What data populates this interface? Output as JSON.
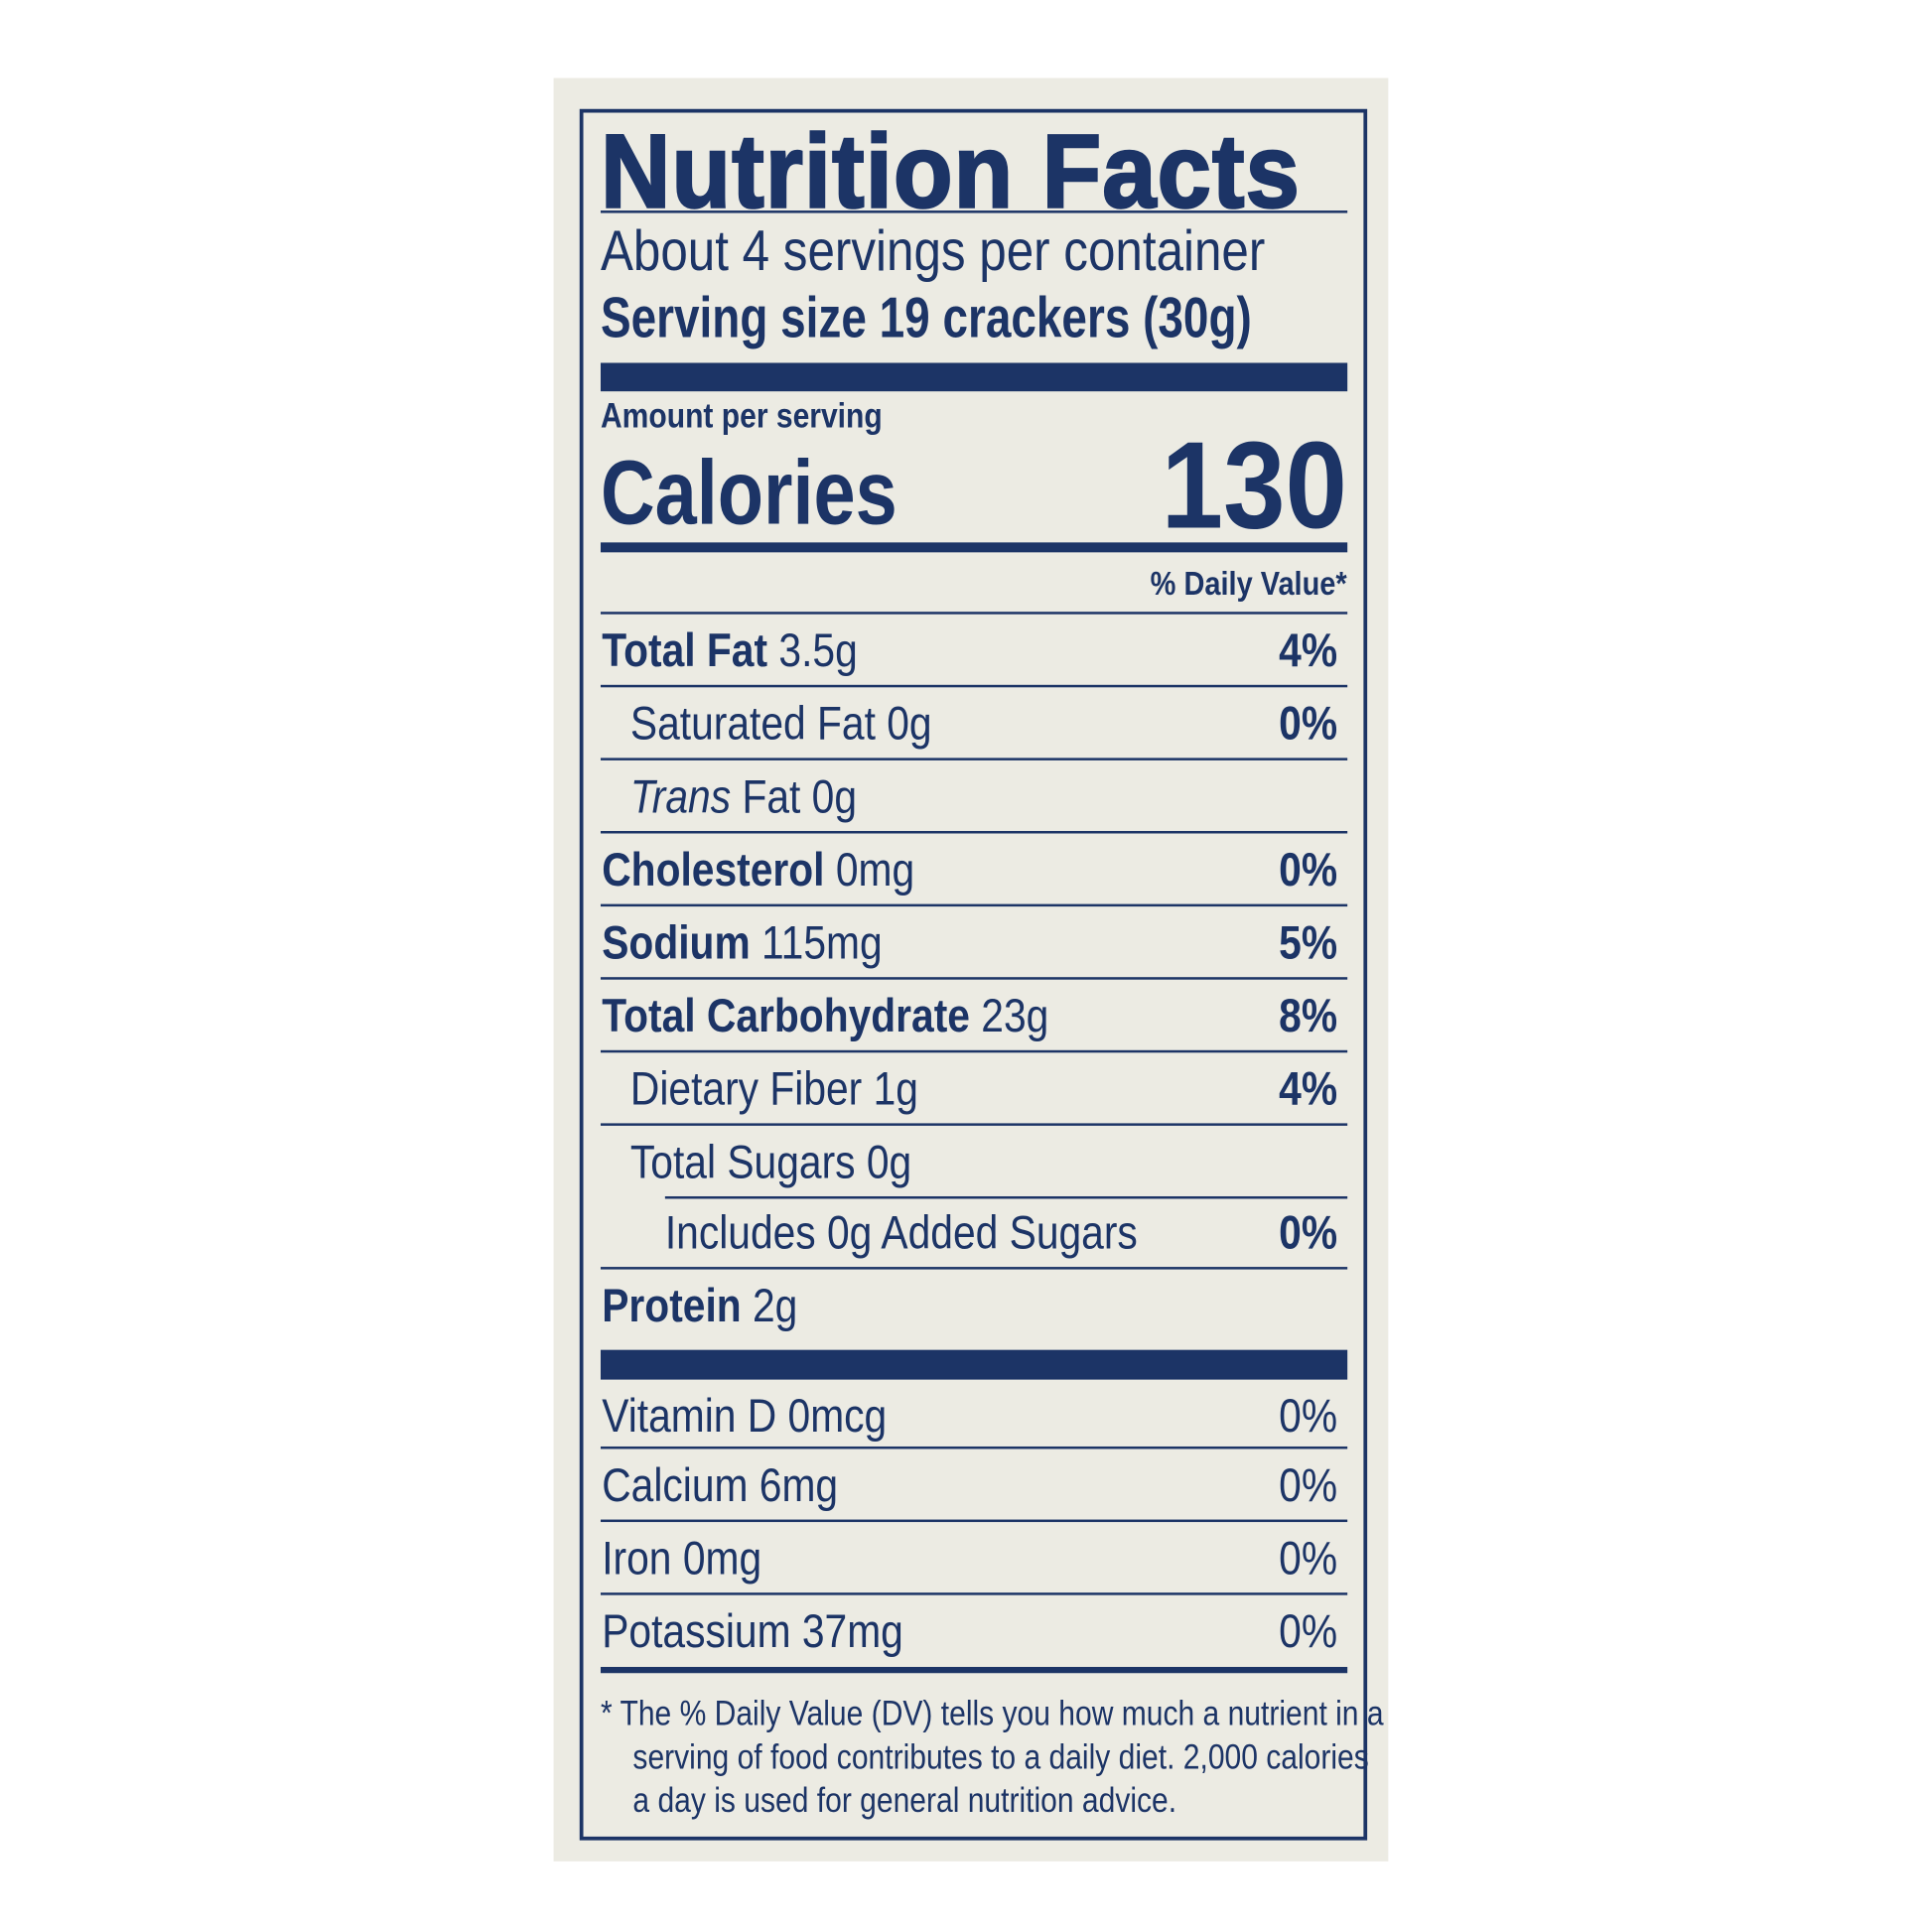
{
  "colors": {
    "ink": "#1c3466",
    "background": "#ecebe3"
  },
  "title": "Nutrition Facts",
  "servings_per_container": "About 4 servings per container",
  "serving_size": "Serving size 19 crackers (30g)",
  "amount_per_serving": "Amount per serving",
  "calories_label": "Calories",
  "calories_value": "130",
  "daily_value_header": "% Daily Value*",
  "nutrients": [
    {
      "label": "Total Fat",
      "amount": "3.5g",
      "dv": "4%",
      "bold": true,
      "indent": 0
    },
    {
      "label": "Saturated Fat",
      "amount": "0g",
      "dv": "0%",
      "bold": false,
      "indent": 1
    },
    {
      "italic": "Trans",
      "label": "Fat",
      "amount": "0g",
      "dv": "",
      "bold": false,
      "indent": 1
    },
    {
      "label": "Cholesterol",
      "amount": "0mg",
      "dv": "0%",
      "bold": true,
      "indent": 0
    },
    {
      "label": "Sodium",
      "amount": "115mg",
      "dv": "5%",
      "bold": true,
      "indent": 0
    },
    {
      "label": "Total Carbohydrate",
      "amount": "23g",
      "dv": "8%",
      "bold": true,
      "indent": 0
    },
    {
      "label": "Dietary Fiber",
      "amount": "1g",
      "dv": "4%",
      "bold": false,
      "indent": 1
    },
    {
      "label": "Total Sugars",
      "amount": "0g",
      "dv": "",
      "bold": false,
      "indent": 1,
      "short_line": true
    },
    {
      "label": "Includes 0g Added Sugars",
      "amount": "",
      "dv": "0%",
      "bold": false,
      "indent": 2
    },
    {
      "label": "Protein",
      "amount": "2g",
      "dv": "",
      "bold": true,
      "indent": 0,
      "no_line": true
    }
  ],
  "vitamins": [
    {
      "label": "Vitamin D",
      "amount": "0mcg",
      "dv": "0%"
    },
    {
      "label": "Calcium",
      "amount": "6mg",
      "dv": "0%"
    },
    {
      "label": "Iron",
      "amount": "0mg",
      "dv": "0%"
    },
    {
      "label": "Potassium",
      "amount": "37mg",
      "dv": "0%"
    }
  ],
  "footnote": [
    "* The % Daily Value (DV) tells you how much a nutrient in a",
    "serving of food contributes to a daily diet. 2,000 calories",
    "a day is used for general nutrition advice."
  ]
}
